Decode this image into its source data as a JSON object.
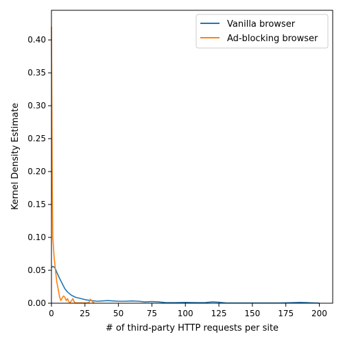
{
  "chart_data": {
    "type": "line",
    "title": "",
    "xlabel": "# of third-party HTTP requests per site",
    "ylabel": "Kernel Density Estimate",
    "xlim": [
      0,
      210
    ],
    "ylim": [
      0,
      0.445
    ],
    "x_ticks": [
      0,
      25,
      50,
      75,
      100,
      125,
      150,
      175,
      200
    ],
    "x_tick_labels": [
      "0",
      "25",
      "50",
      "75",
      "100",
      "125",
      "150",
      "175",
      "200"
    ],
    "y_ticks": [
      0.0,
      0.05,
      0.1,
      0.15,
      0.2,
      0.25,
      0.3,
      0.35,
      0.4
    ],
    "y_tick_labels": [
      "0.00",
      "0.05",
      "0.10",
      "0.15",
      "0.20",
      "0.25",
      "0.30",
      "0.35",
      "0.40"
    ],
    "grid": false,
    "legend_position": "top-right",
    "series": [
      {
        "name": "Vanilla browser",
        "color": "#1f77b4",
        "x": [
          0,
          1,
          2,
          3,
          4,
          6,
          8,
          10,
          12,
          15,
          18,
          22,
          26,
          30,
          34,
          38,
          42,
          46,
          50,
          55,
          60,
          65,
          70,
          75,
          80,
          85,
          90,
          95,
          100,
          105,
          110,
          115,
          120,
          125,
          130,
          140,
          150,
          160,
          170,
          180,
          185,
          190,
          195,
          200
        ],
        "y": [
          0.054,
          0.056,
          0.055,
          0.052,
          0.047,
          0.038,
          0.03,
          0.022,
          0.017,
          0.012,
          0.009,
          0.007,
          0.005,
          0.004,
          0.003,
          0.0035,
          0.004,
          0.0035,
          0.003,
          0.003,
          0.0035,
          0.003,
          0.002,
          0.0025,
          0.002,
          0.001,
          0.0008,
          0.001,
          0.0012,
          0.001,
          0.0008,
          0.001,
          0.002,
          0.0015,
          0.0005,
          0.0003,
          0.0003,
          0.0003,
          0.0004,
          0.0008,
          0.0012,
          0.001,
          0.0005,
          0.0002
        ]
      },
      {
        "name": "Ad-blocking browser",
        "color": "#ff7f0e",
        "x": [
          0,
          0.3,
          0.6,
          1,
          1.5,
          2,
          3,
          4,
          5,
          6,
          7,
          8,
          9,
          10,
          11,
          12,
          13,
          14,
          15,
          16,
          17,
          18,
          20,
          22,
          24,
          26,
          28,
          29,
          30,
          31,
          32
        ],
        "y": [
          0.42,
          0.3,
          0.18,
          0.1,
          0.085,
          0.07,
          0.05,
          0.032,
          0.022,
          0.01,
          0.004,
          0.008,
          0.011,
          0.009,
          0.004,
          0.007,
          0.002,
          0.001,
          0.004,
          0.007,
          0.002,
          0.0005,
          0.0005,
          0.0005,
          0.0005,
          0.0003,
          0.001,
          0.006,
          0.004,
          0.0015,
          0.0003
        ]
      }
    ]
  }
}
